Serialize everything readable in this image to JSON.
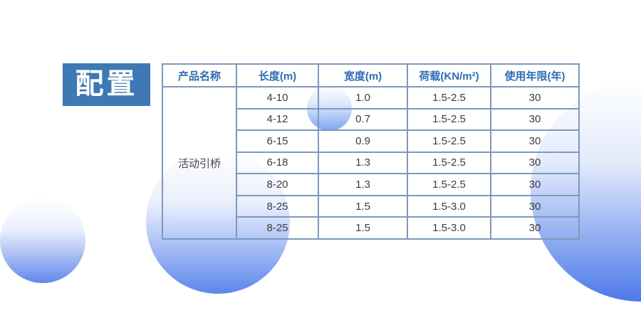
{
  "title": {
    "label": "配置"
  },
  "table": {
    "headers": [
      "产品名称",
      "长度(m)",
      "宽度(m)",
      "荷载(KN/m²)",
      "使用年限(年)"
    ],
    "product_name": "活动引桥",
    "rows": [
      {
        "length": "4-10",
        "width": "1.0",
        "load": "1.5-2.5",
        "life": "30"
      },
      {
        "length": "4-12",
        "width": "0.7",
        "load": "1.5-2.5",
        "life": "30"
      },
      {
        "length": "6-15",
        "width": "0.9",
        "load": "1.5-2.5",
        "life": "30"
      },
      {
        "length": "6-18",
        "width": "1.3",
        "load": "1.5-2.5",
        "life": "30"
      },
      {
        "length": "8-20",
        "width": "1.3",
        "load": "1.5-2.5",
        "life": "30"
      },
      {
        "length": "8-25",
        "width": "1.5",
        "load": "1.5-3.0",
        "life": "30"
      },
      {
        "length": "8-25",
        "width": "1.5",
        "load": "1.5-3.0",
        "life": "30"
      }
    ]
  },
  "colors": {
    "title_background": "#3e79b4",
    "title_text": "#ffffff",
    "header_text": "#2f6cb3",
    "body_text": "#3c3c3c",
    "table_border": "#7e98ba",
    "circle_blue_deep": "#4c79e9",
    "circle_blue_mid": "#5c86ec",
    "circle_blue_soft": "#6288ea",
    "circle_blue_light": "#7fa5f2"
  }
}
